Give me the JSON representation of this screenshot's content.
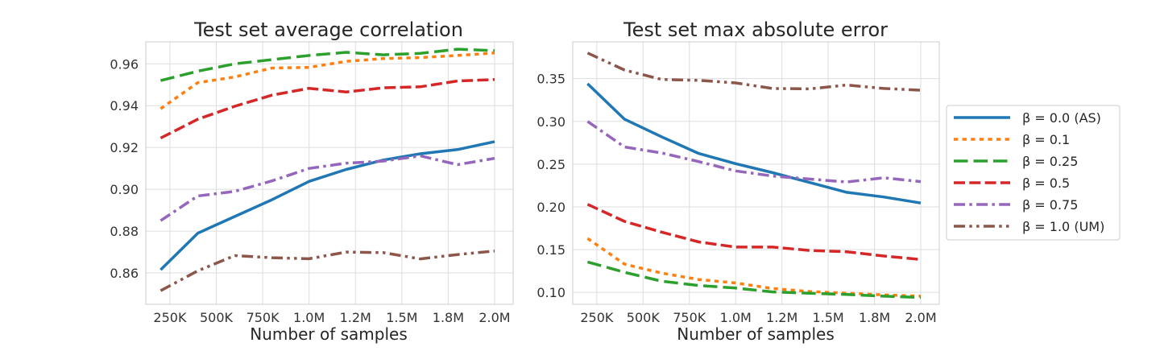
{
  "chart_data": [
    {
      "type": "line",
      "title": "Test set average correlation",
      "xlabel": "Number of samples",
      "ylabel": "",
      "x": [
        200000,
        400000,
        600000,
        800000,
        1000000,
        1200000,
        1400000,
        1600000,
        1800000,
        2000000
      ],
      "xticks": [
        250000,
        500000,
        750000,
        1000000,
        1250000,
        1500000,
        1750000,
        2000000
      ],
      "xtick_labels": [
        "250K",
        "500K",
        "750K",
        "1.0M",
        "1.2M",
        "1.5M",
        "1.8M",
        "2.0M"
      ],
      "xlim": [
        120000,
        2100000
      ],
      "ylim": [
        0.845,
        0.9705
      ],
      "yticks": [
        0.86,
        0.88,
        0.9,
        0.92,
        0.94,
        0.96
      ],
      "ytick_labels": [
        "0.86",
        "0.88",
        "0.90",
        "0.92",
        "0.94",
        "0.96"
      ],
      "grid": true,
      "series": [
        {
          "name": "β = 0.0 (AS)",
          "values": [
            0.8615,
            0.879,
            0.887,
            0.895,
            0.9038,
            0.9095,
            0.914,
            0.917,
            0.919,
            0.9228
          ]
        },
        {
          "name": "β = 0.1",
          "values": [
            0.9385,
            0.951,
            0.9537,
            0.958,
            0.9583,
            0.9612,
            0.9625,
            0.963,
            0.964,
            0.9652
          ]
        },
        {
          "name": "β = 0.25",
          "values": [
            0.952,
            0.9565,
            0.96,
            0.962,
            0.964,
            0.9655,
            0.9643,
            0.965,
            0.967,
            0.9663
          ]
        },
        {
          "name": "β = 0.5",
          "values": [
            0.9245,
            0.9335,
            0.9397,
            0.945,
            0.9483,
            0.9465,
            0.9485,
            0.949,
            0.9518,
            0.9525
          ]
        },
        {
          "name": "β = 0.75",
          "values": [
            0.885,
            0.8968,
            0.899,
            0.904,
            0.91,
            0.9125,
            0.9135,
            0.916,
            0.9118,
            0.9148
          ]
        },
        {
          "name": "β = 1.0 (UM)",
          "values": [
            0.8515,
            0.861,
            0.8683,
            0.8673,
            0.8668,
            0.87,
            0.8697,
            0.8667,
            0.8688,
            0.8705
          ]
        }
      ]
    },
    {
      "type": "line",
      "title": "Test set max absolute error",
      "xlabel": "Number of samples",
      "ylabel": "",
      "x": [
        200000,
        400000,
        600000,
        800000,
        1000000,
        1200000,
        1400000,
        1600000,
        1800000,
        2000000
      ],
      "xticks": [
        250000,
        500000,
        750000,
        1000000,
        1250000,
        1500000,
        1750000,
        2000000
      ],
      "xtick_labels": [
        "250K",
        "500K",
        "750K",
        "1.0M",
        "1.2M",
        "1.5M",
        "1.8M",
        "2.0M"
      ],
      "xlim": [
        120000,
        2100000
      ],
      "ylim": [
        0.086,
        0.393
      ],
      "yticks": [
        0.1,
        0.15,
        0.2,
        0.25,
        0.3,
        0.35
      ],
      "ytick_labels": [
        "0.10",
        "0.15",
        "0.20",
        "0.25",
        "0.30",
        "0.35"
      ],
      "grid": true,
      "legend": "right",
      "series": [
        {
          "name": "β = 0.0 (AS)",
          "values": [
            0.344,
            0.3025,
            0.282,
            0.2625,
            0.2505,
            0.24,
            0.2285,
            0.217,
            0.2115,
            0.2045
          ]
        },
        {
          "name": "β = 0.1",
          "values": [
            0.163,
            0.133,
            0.1225,
            0.115,
            0.111,
            0.1045,
            0.101,
            0.099,
            0.097,
            0.0955
          ]
        },
        {
          "name": "β = 0.25",
          "values": [
            0.1355,
            0.1235,
            0.113,
            0.108,
            0.105,
            0.1005,
            0.099,
            0.0975,
            0.0955,
            0.094
          ]
        },
        {
          "name": "β = 0.5",
          "values": [
            0.203,
            0.183,
            0.1705,
            0.159,
            0.153,
            0.153,
            0.149,
            0.1475,
            0.1425,
            0.1385
          ]
        },
        {
          "name": "β = 0.75",
          "values": [
            0.3,
            0.27,
            0.263,
            0.253,
            0.242,
            0.236,
            0.2325,
            0.229,
            0.234,
            0.2295
          ]
        },
        {
          "name": "β = 1.0 (UM)",
          "values": [
            0.38,
            0.36,
            0.349,
            0.348,
            0.345,
            0.3385,
            0.338,
            0.3425,
            0.3385,
            0.3365
          ]
        }
      ]
    }
  ],
  "legend": {
    "entries": [
      "β = 0.0 (AS)",
      "β = 0.1",
      "β = 0.25",
      "β = 0.5",
      "β = 0.75",
      "β = 1.0 (UM)"
    ]
  },
  "styles": {
    "colors": [
      "#1f77b4",
      "#ff7f0e",
      "#2ca02c",
      "#d62728",
      "#9467bd",
      "#8c564b"
    ],
    "dashes": [
      "",
      "1.5,1.5",
      "5,2",
      "4,1.5",
      "4,1.5,1,1.5",
      "4,1.5,1,1.5,1,1.5"
    ],
    "grid_color": "#dddddd",
    "frame_color": "#cccccc"
  }
}
